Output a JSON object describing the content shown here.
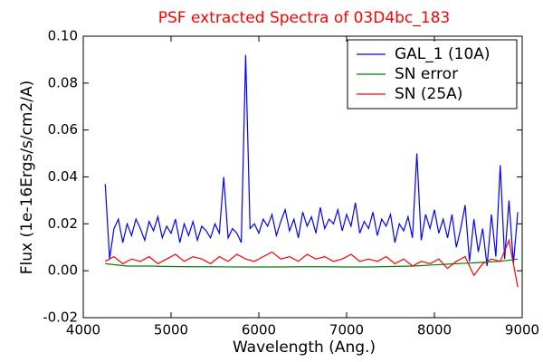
{
  "chart_data": {
    "type": "line",
    "title": "PSF extracted Spectra of 03D4bc_183",
    "xlabel": "Wavelength (Ang.)",
    "ylabel": "Flux (1e-16Ergs/s/cm2/A)",
    "xlim": [
      4000,
      9000
    ],
    "xticks": [
      4000,
      5000,
      6000,
      7000,
      8000,
      9000
    ],
    "ylim": [
      -0.02,
      0.1
    ],
    "yticks": [
      -0.02,
      {
        "value": 0,
        "label": "0.00"
      },
      0.02,
      0.04,
      0.06,
      0.08,
      {
        "value": 0.1,
        "label": "0.10"
      }
    ],
    "legend": "upper right",
    "series": [
      {
        "name": "GAL_1 (10A)",
        "color": "#0000ff",
        "x": [
          4250,
          4300,
          4350,
          4400,
          4450,
          4500,
          4550,
          4600,
          4650,
          4700,
          4750,
          4800,
          4850,
          4900,
          4950,
          5000,
          5050,
          5100,
          5150,
          5200,
          5250,
          5300,
          5350,
          5400,
          5450,
          5500,
          5550,
          5600,
          5650,
          5700,
          5750,
          5800,
          5850,
          5900,
          5950,
          6000,
          6050,
          6100,
          6150,
          6200,
          6250,
          6300,
          6350,
          6400,
          6450,
          6500,
          6550,
          6600,
          6650,
          6700,
          6750,
          6800,
          6850,
          6900,
          6950,
          7000,
          7050,
          7100,
          7150,
          7200,
          7250,
          7300,
          7350,
          7400,
          7450,
          7500,
          7550,
          7600,
          7650,
          7700,
          7750,
          7800,
          7850,
          7900,
          7950,
          8000,
          8050,
          8100,
          8150,
          8200,
          8250,
          8300,
          8350,
          8400,
          8450,
          8500,
          8550,
          8600,
          8650,
          8700,
          8750,
          8800,
          8850,
          8900,
          8950
        ],
        "values": [
          0.037,
          0.005,
          0.018,
          0.022,
          0.012,
          0.02,
          0.015,
          0.022,
          0.018,
          0.013,
          0.021,
          0.017,
          0.023,
          0.014,
          0.019,
          0.016,
          0.022,
          0.012,
          0.02,
          0.015,
          0.021,
          0.013,
          0.019,
          0.017,
          0.014,
          0.02,
          0.016,
          0.04,
          0.014,
          0.018,
          0.016,
          0.012,
          0.092,
          0.018,
          0.02,
          0.016,
          0.022,
          0.019,
          0.024,
          0.015,
          0.021,
          0.026,
          0.017,
          0.022,
          0.014,
          0.025,
          0.019,
          0.023,
          0.016,
          0.027,
          0.018,
          0.022,
          0.02,
          0.026,
          0.017,
          0.024,
          0.019,
          0.029,
          0.016,
          0.021,
          0.018,
          0.025,
          0.015,
          0.022,
          0.019,
          0.024,
          0.012,
          0.02,
          0.017,
          0.023,
          0.014,
          0.05,
          0.013,
          0.024,
          0.018,
          0.026,
          0.016,
          0.022,
          0.014,
          0.024,
          0.01,
          0.018,
          0.028,
          0.004,
          0.022,
          0.008,
          0.018,
          0.002,
          0.024,
          0.006,
          0.045,
          0.005,
          0.03,
          0.003,
          0.025
        ]
      },
      {
        "name": "SN error",
        "color": "#008000",
        "x": [
          4250,
          4500,
          4750,
          5000,
          5250,
          5500,
          5750,
          6000,
          6250,
          6500,
          6750,
          7000,
          7250,
          7500,
          7750,
          8000,
          8250,
          8500,
          8750,
          8950
        ],
        "values": [
          0.003,
          0.002,
          0.002,
          0.0018,
          0.0017,
          0.0017,
          0.0016,
          0.0016,
          0.0016,
          0.0017,
          0.0017,
          0.0016,
          0.0016,
          0.0018,
          0.002,
          0.0025,
          0.003,
          0.0035,
          0.004,
          0.005
        ]
      },
      {
        "name": "SN (25A)",
        "color": "#ff0000",
        "x": [
          4250,
          4350,
          4450,
          4550,
          4650,
          4750,
          4850,
          4950,
          5050,
          5150,
          5250,
          5350,
          5450,
          5550,
          5650,
          5750,
          5850,
          5950,
          6050,
          6150,
          6250,
          6350,
          6450,
          6550,
          6650,
          6750,
          6850,
          6950,
          7050,
          7150,
          7250,
          7350,
          7450,
          7550,
          7650,
          7750,
          7850,
          7950,
          8050,
          8150,
          8250,
          8350,
          8450,
          8550,
          8650,
          8750,
          8850,
          8950
        ],
        "values": [
          0.004,
          0.006,
          0.003,
          0.005,
          0.004,
          0.006,
          0.003,
          0.005,
          0.007,
          0.004,
          0.006,
          0.005,
          0.003,
          0.006,
          0.004,
          0.007,
          0.005,
          0.004,
          0.006,
          0.008,
          0.005,
          0.006,
          0.004,
          0.007,
          0.005,
          0.006,
          0.004,
          0.005,
          0.007,
          0.004,
          0.005,
          0.004,
          0.006,
          0.003,
          0.005,
          0.002,
          0.004,
          0.003,
          0.005,
          0.001,
          0.004,
          0.006,
          -0.002,
          0.003,
          0.005,
          0.004,
          0.013,
          -0.007
        ]
      }
    ]
  }
}
